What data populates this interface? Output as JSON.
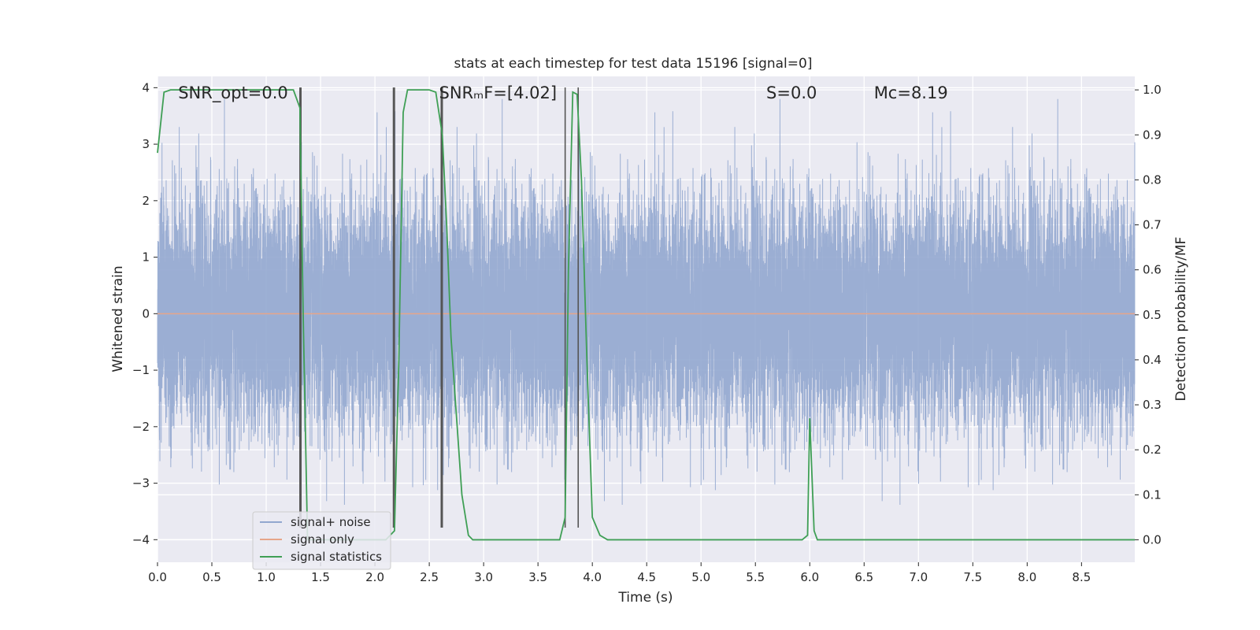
{
  "chart_data": {
    "type": "line",
    "title": "stats at each timestep for test data 15196 [signal=0]",
    "xlabel": "Time (s)",
    "ylabel": "Whitened strain",
    "y2label": "Detection probability/MF",
    "xlim": [
      0.0,
      8.99
    ],
    "ylim": [
      -4.4,
      4.2
    ],
    "y2lim": [
      -0.05,
      1.03
    ],
    "x_ticks": [
      0.0,
      0.5,
      1.0,
      1.5,
      2.0,
      2.5,
      3.0,
      3.5,
      4.0,
      4.5,
      5.0,
      5.5,
      6.0,
      6.5,
      7.0,
      7.5,
      8.0,
      8.5
    ],
    "x_tick_labels": [
      "0.0",
      "0.5",
      "1.0",
      "1.5",
      "2.0",
      "2.5",
      "3.0",
      "3.5",
      "4.0",
      "4.5",
      "5.0",
      "5.5",
      "6.0",
      "6.5",
      "7.0",
      "7.5",
      "8.0",
      "8.5"
    ],
    "y_ticks": [
      -4,
      -3,
      -2,
      -1,
      0,
      1,
      2,
      3,
      4
    ],
    "y_tick_labels": [
      "−4",
      "−3",
      "−2",
      "−1",
      "0",
      "1",
      "2",
      "3",
      "4"
    ],
    "y2_ticks": [
      0.0,
      0.1,
      0.2,
      0.3,
      0.4,
      0.5,
      0.6,
      0.7,
      0.8,
      0.9,
      1.0
    ],
    "y2_tick_labels": [
      "0.0",
      "0.1",
      "0.2",
      "0.3",
      "0.4",
      "0.5",
      "0.6",
      "0.7",
      "0.8",
      "0.9",
      "1.0"
    ],
    "grid": true,
    "legend_position": "lower-left",
    "series": [
      {
        "name": "signal+ noise",
        "color": "#92a7cf",
        "kind": "noise",
        "sample_rate_hz": 2048,
        "typical_envelope": [
          -2.0,
          2.3
        ],
        "extremes": [
          -4.0,
          3.8
        ]
      },
      {
        "name": "signal only",
        "color": "#e6a58a",
        "x": [
          0.0,
          8.99
        ],
        "y": [
          0.0,
          0.0
        ]
      },
      {
        "name": "signal statistics",
        "color": "#3f9f55",
        "axis": "right",
        "x": [
          0.0,
          0.06,
          0.12,
          0.25,
          0.5,
          1.0,
          1.25,
          1.31,
          1.34,
          1.38,
          1.42,
          1.5,
          1.7,
          2.0,
          2.1,
          2.18,
          2.22,
          2.26,
          2.3,
          2.5,
          2.56,
          2.62,
          2.66,
          2.7,
          2.8,
          2.86,
          2.9,
          3.0,
          3.5,
          3.7,
          3.75,
          3.78,
          3.82,
          3.86,
          3.9,
          3.95,
          4.0,
          4.07,
          4.14,
          4.5,
          5.0,
          5.5,
          5.93,
          5.98,
          6.0,
          6.04,
          6.07,
          6.5,
          7.0,
          8.0,
          8.99
        ],
        "y": [
          0.86,
          0.995,
          1.0,
          1.0,
          1.0,
          1.0,
          1.0,
          0.96,
          0.5,
          0.0,
          0.0,
          0.0,
          0.0,
          0.0,
          0.0,
          0.02,
          0.4,
          0.95,
          1.0,
          1.0,
          0.995,
          0.9,
          0.7,
          0.45,
          0.1,
          0.01,
          0.0,
          0.0,
          0.0,
          0.0,
          0.05,
          0.6,
          0.995,
          0.99,
          0.8,
          0.4,
          0.05,
          0.01,
          0.0,
          0.0,
          0.0,
          0.0,
          0.0,
          0.01,
          0.27,
          0.02,
          0.0,
          0.0,
          0.0,
          0.0,
          0.0
        ]
      }
    ],
    "vertical_lines": [
      1.31,
      1.32,
      2.17,
      2.18,
      2.61,
      2.62,
      3.75,
      3.87
    ],
    "annotations": [
      {
        "text": "SNR_opt=0.0",
        "x": 0.19,
        "y": 3.92
      },
      {
        "text": "SNRₘF=[4.02]",
        "x": 2.59,
        "y": 3.92
      },
      {
        "text": "S=0.0",
        "x": 5.6,
        "y": 3.92
      },
      {
        "text": "Mᴄ=8.19",
        "x": 6.59,
        "y": 3.92
      }
    ]
  }
}
